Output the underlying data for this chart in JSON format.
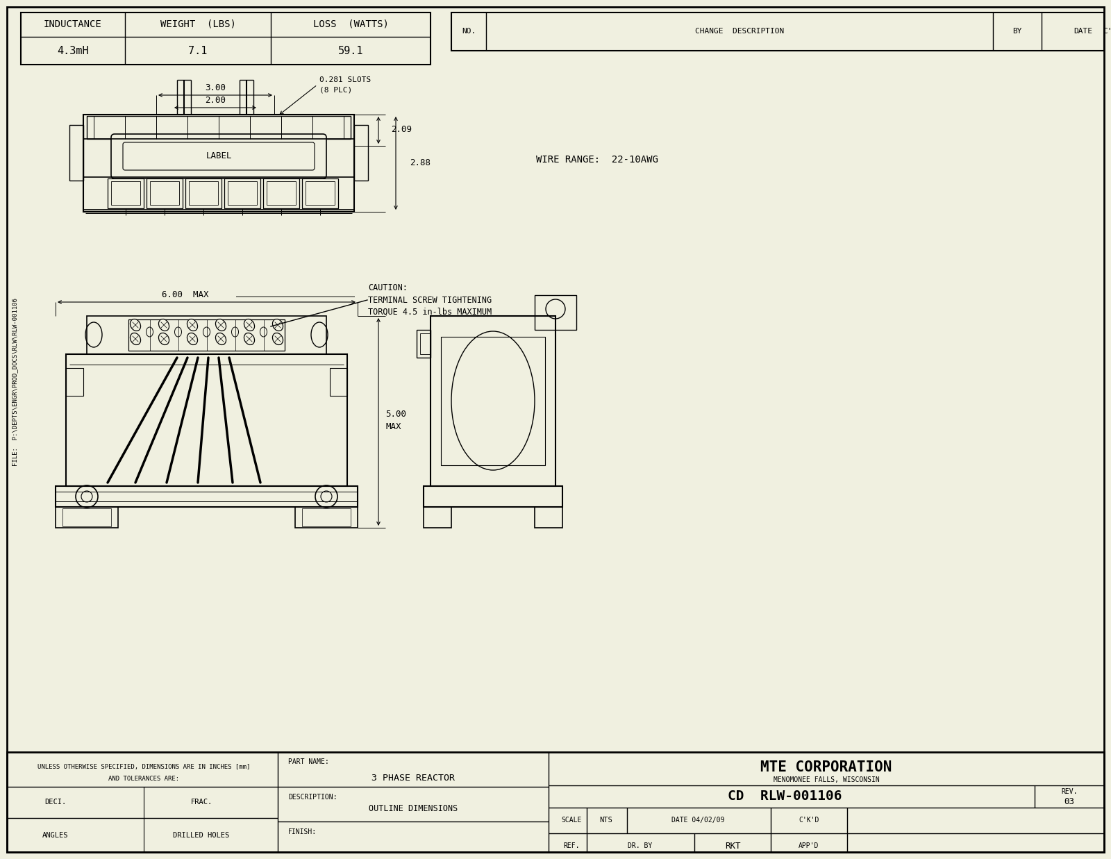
{
  "bg_color": "#f0f0e0",
  "line_color": "#000000",
  "title_company": "MTE CORPORATION",
  "title_city": "MENOMONEE FALLS, WISCONSIN",
  "part_name": "3 PHASE REACTOR",
  "description": "OUTLINE DIMENSIONS",
  "part_number": "CD  RLW-001106",
  "rev": "03",
  "scale": "NTS",
  "date": "04/02/09",
  "ckd": "C'K'D",
  "ref": "REF.",
  "dr_by": "RKT",
  "appd": "APP'D",
  "inductance": "4.3mH",
  "weight": "7.1",
  "loss": "59.1",
  "wire_range": "WIRE RANGE:  22-10AWG",
  "caution_line1": "CAUTION:",
  "caution_line2": "TERMINAL SCREW TIGHTENING",
  "caution_line3": "TORQUE 4.5 in-lbs MAXIMUM",
  "dim_300": "3.00",
  "dim_200": "2.00",
  "dim_slots": "0.281 SLOTS",
  "dim_slots2": "(8 PLC)",
  "dim_209": "2.09",
  "dim_288": "2.88",
  "dim_600": "6.00  MAX",
  "dim_500a": "5.00",
  "dim_500b": "MAX",
  "tolerances_line1": "UNLESS OTHERWISE SPECIFIED, DIMENSIONS ARE IN INCHES [mm]",
  "tolerances_line2": "AND TOLERANCES ARE:",
  "deci": "DECI.",
  "frac": "FRAC.",
  "angles": "ANGLES",
  "drilled": "DRILLED HOLES",
  "part_name_label": "PART NAME:",
  "description_label": "DESCRIPTION:",
  "finish_label": "FINISH:",
  "no_label": "NO.",
  "change_desc_label": "CHANGE  DESCRIPTION",
  "by_label": "BY",
  "date_label": "DATE",
  "ckd_label": "C'K'D",
  "file_text": "FILE:  P:\\DEPTS\\ENGR\\PROD_DOCS\\RLW\\RLW-001106"
}
